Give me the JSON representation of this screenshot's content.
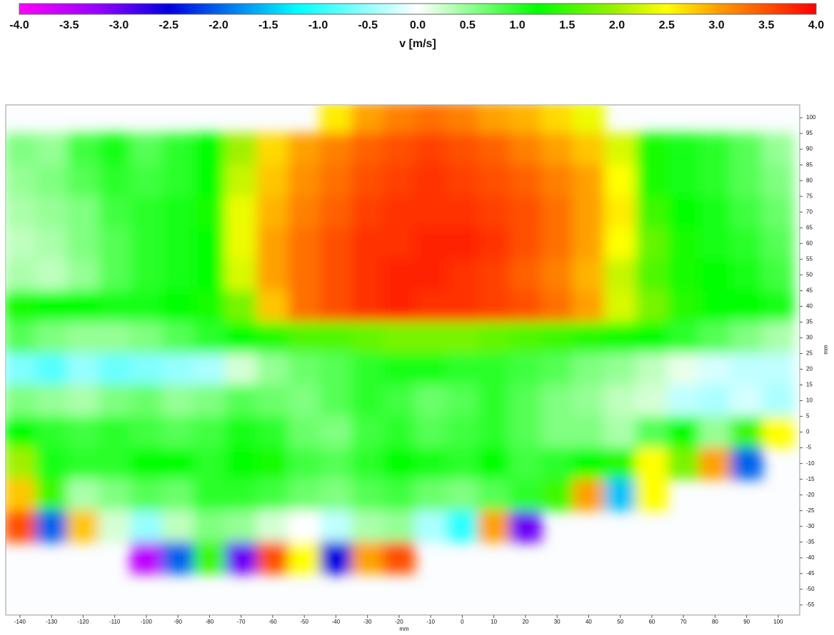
{
  "chart_data": {
    "type": "heatmap",
    "colorbar_label": "v [m/s]",
    "x_label": "mm",
    "y_label": "mm",
    "clim": [
      -4,
      4
    ],
    "cticks": [
      {
        "value": -4,
        "label": "-4.0"
      },
      {
        "value": -3.5,
        "label": "-3.5"
      },
      {
        "value": -3,
        "label": "-3.0"
      },
      {
        "value": -2.5,
        "label": "-2.5"
      },
      {
        "value": -2,
        "label": "-2.0"
      },
      {
        "value": -1.5,
        "label": "-1.5"
      },
      {
        "value": -1,
        "label": "-1.0"
      },
      {
        "value": -0.5,
        "label": "-0.5"
      },
      {
        "value": 0,
        "label": "0.0"
      },
      {
        "value": 0.5,
        "label": "0.5"
      },
      {
        "value": 1,
        "label": "1.0"
      },
      {
        "value": 1.5,
        "label": "1.5"
      },
      {
        "value": 2,
        "label": "2.0"
      },
      {
        "value": 2.5,
        "label": "2.5"
      },
      {
        "value": 3,
        "label": "3.0"
      },
      {
        "value": 3.5,
        "label": "3.5"
      },
      {
        "value": 4,
        "label": "4.0"
      }
    ],
    "colorscale": [
      {
        "value": -4,
        "color": "#ff00ff"
      },
      {
        "value": -3.2,
        "color": "#9400ff"
      },
      {
        "value": -2.5,
        "color": "#0000e0"
      },
      {
        "value": -1.2,
        "color": "#00ffff"
      },
      {
        "value": 0,
        "color": "#ffffff"
      },
      {
        "value": 1.2,
        "color": "#00ff00"
      },
      {
        "value": 2,
        "color": "#a0f000"
      },
      {
        "value": 2.5,
        "color": "#ffff00"
      },
      {
        "value": 3,
        "color": "#ffa000"
      },
      {
        "value": 4,
        "color": "#ff0000"
      }
    ],
    "xlim": [
      -144.5,
      106.8
    ],
    "ylim": [
      -58.2,
      104.1
    ],
    "xticks": [
      -140,
      -130,
      -120,
      -110,
      -100,
      -90,
      -80,
      -70,
      -60,
      -50,
      -40,
      -30,
      -20,
      -10,
      0,
      10,
      20,
      30,
      40,
      50,
      60,
      70,
      80,
      90,
      100
    ],
    "yticks": [
      100,
      95,
      90,
      85,
      80,
      75,
      70,
      65,
      60,
      55,
      50,
      45,
      40,
      35,
      30,
      25,
      20,
      15,
      10,
      5,
      0,
      -5,
      -10,
      -15,
      -20,
      -25,
      -30,
      -35,
      -40,
      -45,
      -50,
      -55
    ],
    "x": [
      -140,
      -130,
      -120,
      -110,
      -100,
      -90,
      -80,
      -70,
      -60,
      -50,
      -40,
      -30,
      -20,
      -10,
      0,
      10,
      20,
      30,
      40,
      50,
      60,
      70,
      80,
      90,
      100
    ],
    "y": [
      100,
      90,
      80,
      70,
      60,
      50,
      40,
      30,
      20,
      10,
      0,
      -10,
      -20,
      -30,
      -40
    ],
    "z": [
      [
        null,
        null,
        null,
        null,
        null,
        null,
        null,
        null,
        null,
        null,
        2.6,
        3.0,
        3.2,
        3.3,
        3.2,
        3.0,
        2.9,
        2.7,
        2.4,
        null,
        null,
        null,
        null,
        null,
        null
      ],
      [
        0.6,
        0.5,
        0.9,
        1.1,
        0.8,
        1.0,
        1.2,
        2.0,
        2.7,
        3.0,
        3.2,
        3.4,
        3.5,
        3.6,
        3.5,
        3.4,
        3.2,
        3.0,
        2.8,
        2.3,
        1.3,
        1.1,
        1.0,
        0.8,
        0.5
      ],
      [
        0.5,
        0.6,
        0.8,
        1.0,
        0.9,
        1.0,
        1.2,
        2.2,
        2.8,
        3.1,
        3.3,
        3.5,
        3.6,
        3.7,
        3.6,
        3.5,
        3.4,
        3.2,
        3.0,
        2.5,
        1.3,
        1.1,
        1.0,
        0.8,
        0.6
      ],
      [
        0.4,
        0.5,
        0.6,
        0.9,
        1.0,
        1.1,
        1.3,
        2.4,
        2.9,
        3.2,
        3.4,
        3.6,
        3.7,
        3.7,
        3.7,
        3.6,
        3.5,
        3.3,
        3.0,
        2.6,
        1.5,
        1.2,
        1.1,
        0.9,
        0.7
      ],
      [
        0.3,
        0.4,
        0.6,
        0.8,
        1.0,
        1.1,
        1.2,
        2.4,
        3.0,
        3.3,
        3.5,
        3.7,
        3.7,
        3.8,
        3.8,
        3.7,
        3.5,
        3.3,
        3.0,
        2.5,
        1.7,
        1.3,
        1.1,
        1.0,
        0.8
      ],
      [
        0.4,
        0.3,
        0.5,
        0.8,
        1.0,
        1.1,
        1.2,
        2.3,
        3.0,
        3.3,
        3.5,
        3.7,
        3.8,
        3.8,
        3.7,
        3.6,
        3.4,
        3.2,
        2.9,
        2.2,
        1.6,
        1.3,
        1.2,
        1.1,
        0.9
      ],
      [
        1.3,
        1.2,
        1.2,
        1.1,
        1.1,
        1.2,
        1.3,
        1.8,
        2.8,
        3.3,
        3.5,
        3.7,
        3.8,
        3.7,
        3.7,
        3.6,
        3.5,
        3.3,
        3.0,
        2.3,
        1.8,
        1.4,
        1.2,
        1.2,
        1.1
      ],
      [
        0.8,
        0.6,
        0.5,
        0.5,
        0.6,
        0.8,
        1.0,
        1.2,
        1.4,
        1.6,
        1.6,
        1.7,
        1.8,
        1.8,
        1.8,
        1.7,
        1.6,
        1.5,
        1.4,
        1.3,
        1.2,
        1.0,
        0.8,
        0.6,
        0.4
      ],
      [
        -0.6,
        -0.8,
        -0.5,
        -0.7,
        -0.6,
        -0.5,
        -0.4,
        0.2,
        0.5,
        0.7,
        0.8,
        1.0,
        1.1,
        1.1,
        1.0,
        1.0,
        0.9,
        0.8,
        0.6,
        0.5,
        0.3,
        0.1,
        -0.2,
        -0.3,
        -0.3
      ],
      [
        0.6,
        0.5,
        0.4,
        0.6,
        0.7,
        0.5,
        0.6,
        0.8,
        0.7,
        0.6,
        0.8,
        1.0,
        0.9,
        0.7,
        0.8,
        1.0,
        0.8,
        0.6,
        0.5,
        0.3,
        0.2,
        -0.3,
        -0.4,
        -0.2,
        -0.4
      ],
      [
        1.2,
        1.0,
        0.9,
        1.0,
        0.9,
        0.8,
        0.9,
        1.1,
        1.0,
        0.7,
        0.6,
        0.9,
        1.0,
        0.8,
        0.9,
        1.0,
        0.8,
        0.6,
        0.6,
        0.4,
        0.8,
        1.2,
        0.5,
        1.5,
        2.5
      ],
      [
        2.0,
        1.1,
        1.0,
        1.0,
        1.2,
        1.2,
        1.0,
        1.2,
        1.3,
        0.9,
        0.8,
        1.0,
        1.2,
        1.1,
        1.0,
        1.2,
        0.9,
        1.0,
        1.2,
        1.4,
        2.5,
        1.8,
        3.0,
        -2.0,
        null
      ],
      [
        2.8,
        1.5,
        0.4,
        0.6,
        0.8,
        0.7,
        1.0,
        1.0,
        0.9,
        0.7,
        0.6,
        0.8,
        0.9,
        0.7,
        0.6,
        0.8,
        1.0,
        1.5,
        3.0,
        -1.5,
        2.5,
        null,
        null,
        null,
        null
      ],
      [
        3.5,
        -2.0,
        2.8,
        0.2,
        -0.5,
        0.3,
        0.6,
        0.5,
        0.2,
        0.0,
        -0.3,
        0.4,
        0.5,
        -0.4,
        -1.0,
        3.0,
        -3.0,
        null,
        null,
        null,
        null,
        null,
        null,
        null,
        null
      ],
      [
        null,
        null,
        null,
        null,
        -3.5,
        -2.0,
        1.5,
        -3.0,
        3.5,
        2.5,
        -2.5,
        3.0,
        3.5,
        null,
        null,
        null,
        null,
        null,
        null,
        null,
        null,
        null,
        null,
        null,
        null
      ]
    ]
  }
}
